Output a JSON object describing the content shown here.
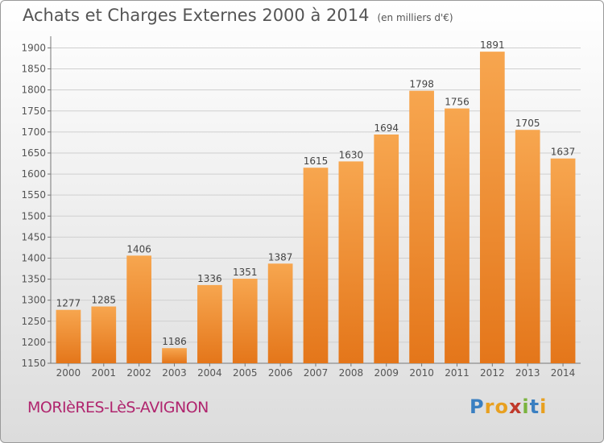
{
  "title": "Achats et Charges Externes 2000 à 2014",
  "subtitle": "(en milliers d'€)",
  "place": "MORIèRES-LèS-AVIGNON",
  "logo": {
    "letters": [
      "P",
      "r",
      "o",
      "x",
      "i",
      "t",
      "i"
    ],
    "colors": [
      "#3a7fc1",
      "#e8a020",
      "#e8a020",
      "#c0392b",
      "#7ab33e",
      "#3a7fc1",
      "#e8a020"
    ]
  },
  "colors": {
    "bar_top": "#f7a64f",
    "bar_bottom": "#e4761a",
    "grid": "#cfcfcf",
    "text": "#555555",
    "place": "#b0256e"
  },
  "chart_data": {
    "type": "bar",
    "categories": [
      "2000",
      "2001",
      "2002",
      "2003",
      "2004",
      "2005",
      "2006",
      "2007",
      "2008",
      "2009",
      "2010",
      "2011",
      "2012",
      "2013",
      "2014"
    ],
    "values": [
      1277,
      1285,
      1406,
      1186,
      1336,
      1351,
      1387,
      1615,
      1630,
      1694,
      1798,
      1756,
      1891,
      1705,
      1637
    ],
    "ylim": [
      1150,
      1920
    ],
    "yticks": [
      1150,
      1200,
      1250,
      1300,
      1350,
      1400,
      1450,
      1500,
      1550,
      1600,
      1650,
      1700,
      1750,
      1800,
      1850,
      1900
    ],
    "grid": true,
    "data_labels": true
  }
}
